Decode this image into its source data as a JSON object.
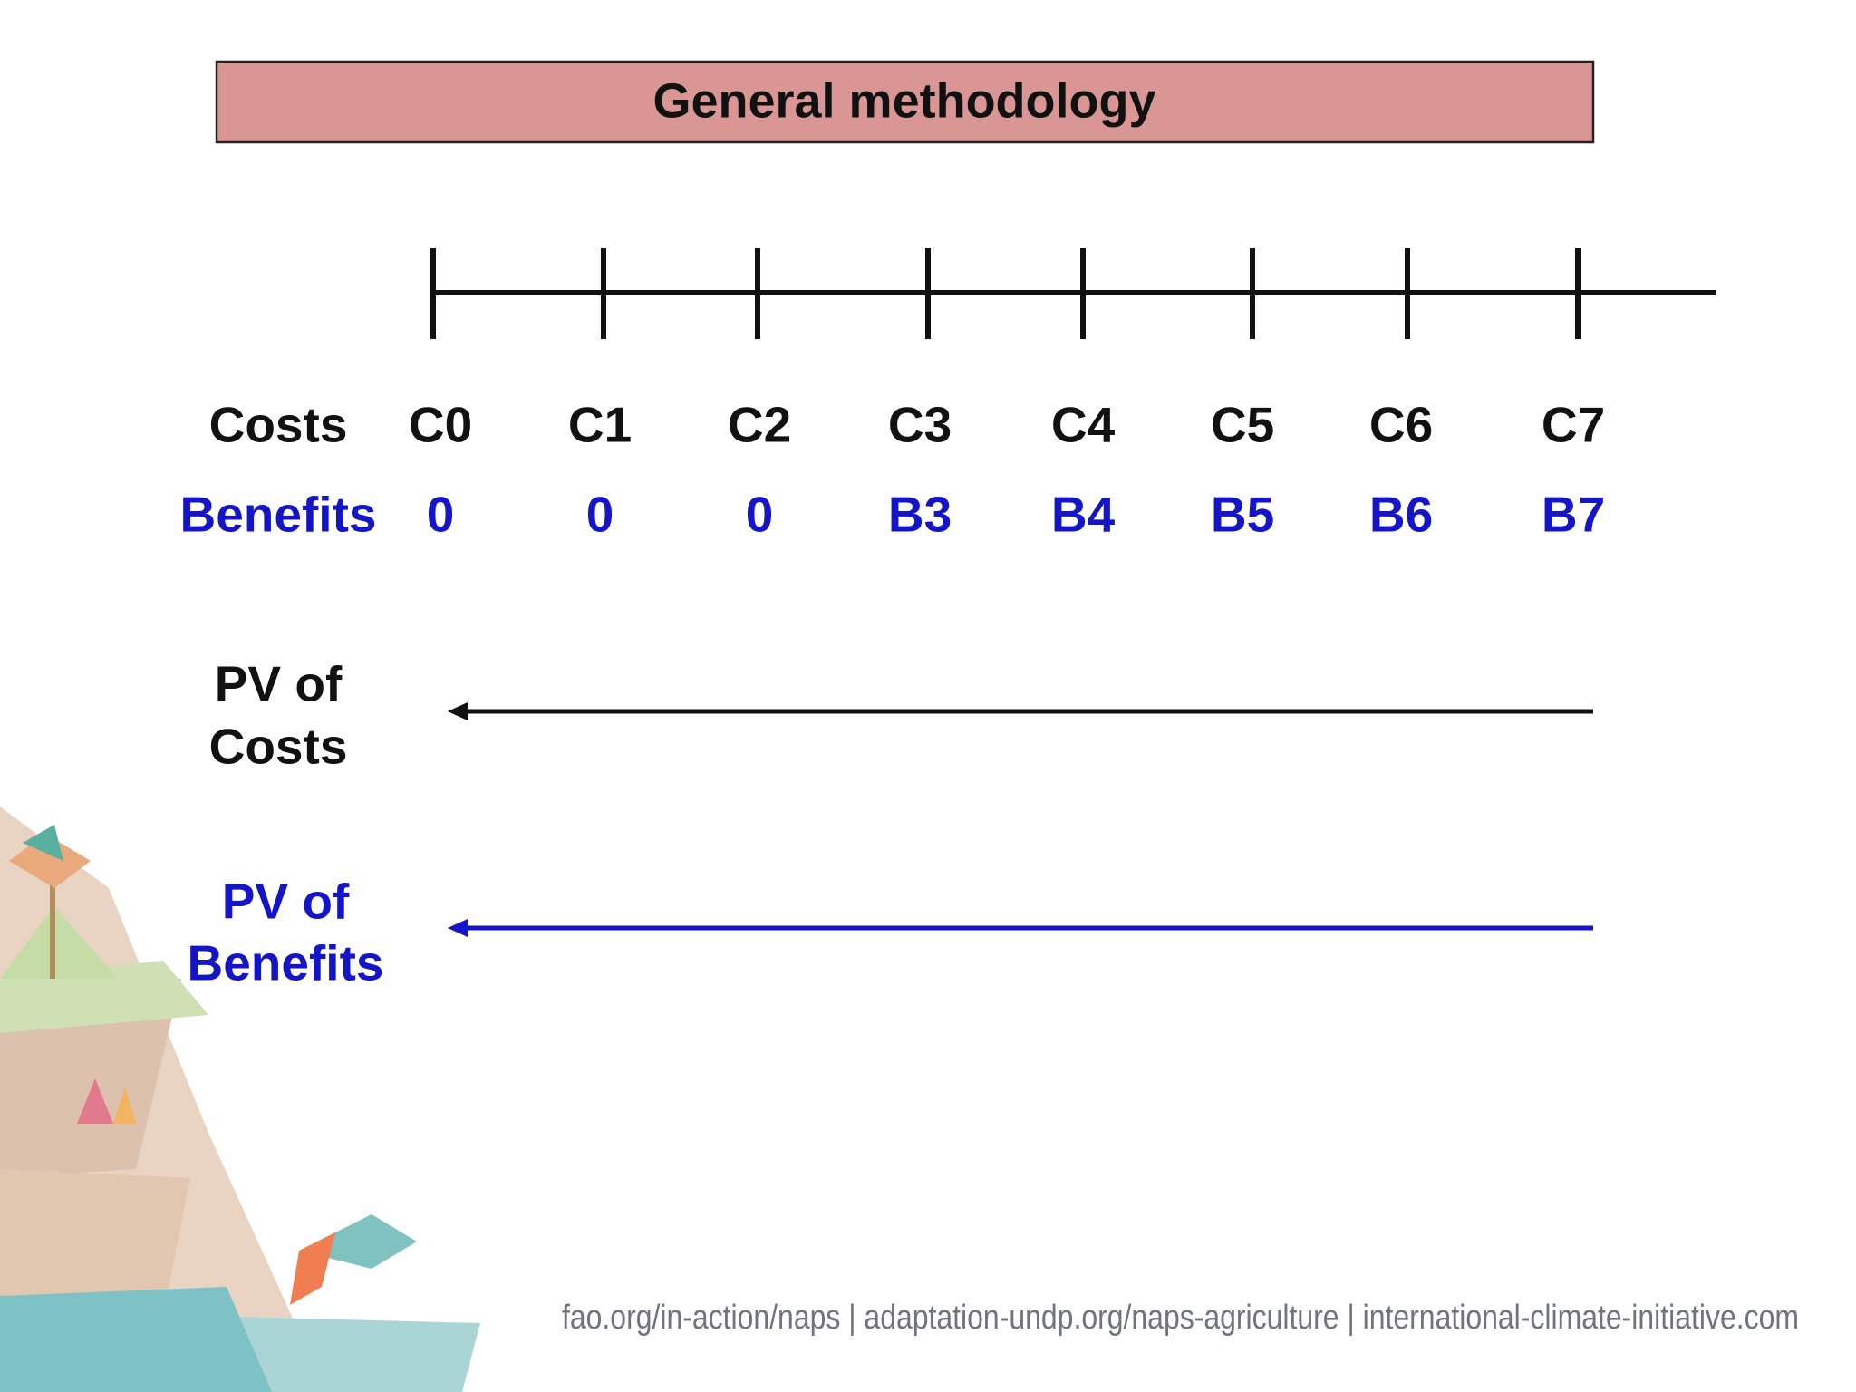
{
  "title": "General methodology",
  "timeline": {
    "costs_label": "Costs",
    "costs": [
      "C0",
      "C1",
      "C2",
      "C3",
      "C4",
      "C5",
      "C6",
      "C7"
    ],
    "benefits_label": "Benefits",
    "benefits": [
      "0",
      "0",
      "0",
      "B3",
      "B4",
      "B5",
      "B6",
      "B7"
    ]
  },
  "pv_costs": [
    "PV of",
    "Costs"
  ],
  "pv_benefits": [
    "PV of",
    "Benefits"
  ],
  "footer": "fao.org/in-action/naps | adaptation-undp.org/naps-agriculture | international-climate-initiative.com"
}
